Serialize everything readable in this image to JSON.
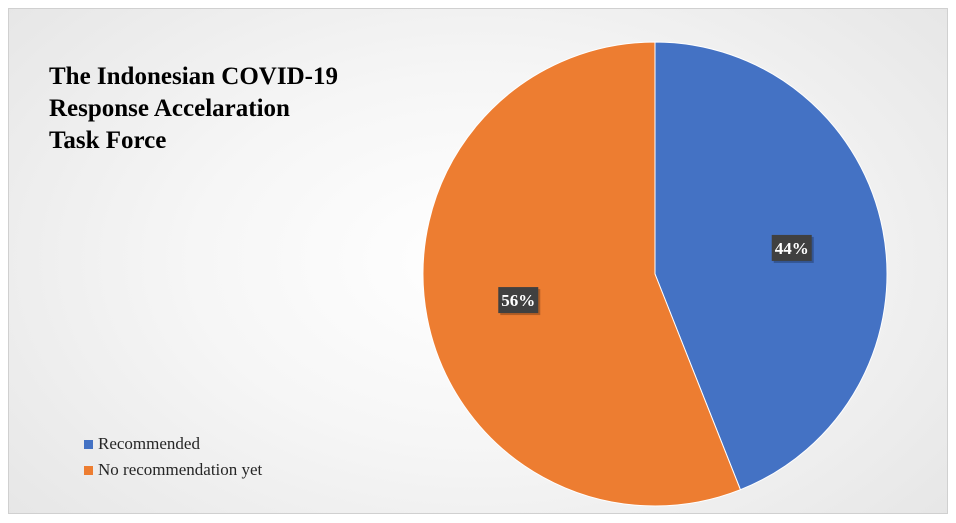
{
  "chart_data": {
    "type": "pie",
    "title_lines": [
      "The Indonesian COVID-19",
      "Response Accelaration",
      "Task Force"
    ],
    "categories": [
      "Recommended",
      "No recommendation yet"
    ],
    "values": [
      44,
      56
    ],
    "data_labels": [
      "44%",
      "56%"
    ],
    "colors": [
      "#4472C4",
      "#ED7D31"
    ],
    "start_angle": "12 o'clock",
    "direction": "clockwise",
    "legend_position": "bottom-left"
  }
}
